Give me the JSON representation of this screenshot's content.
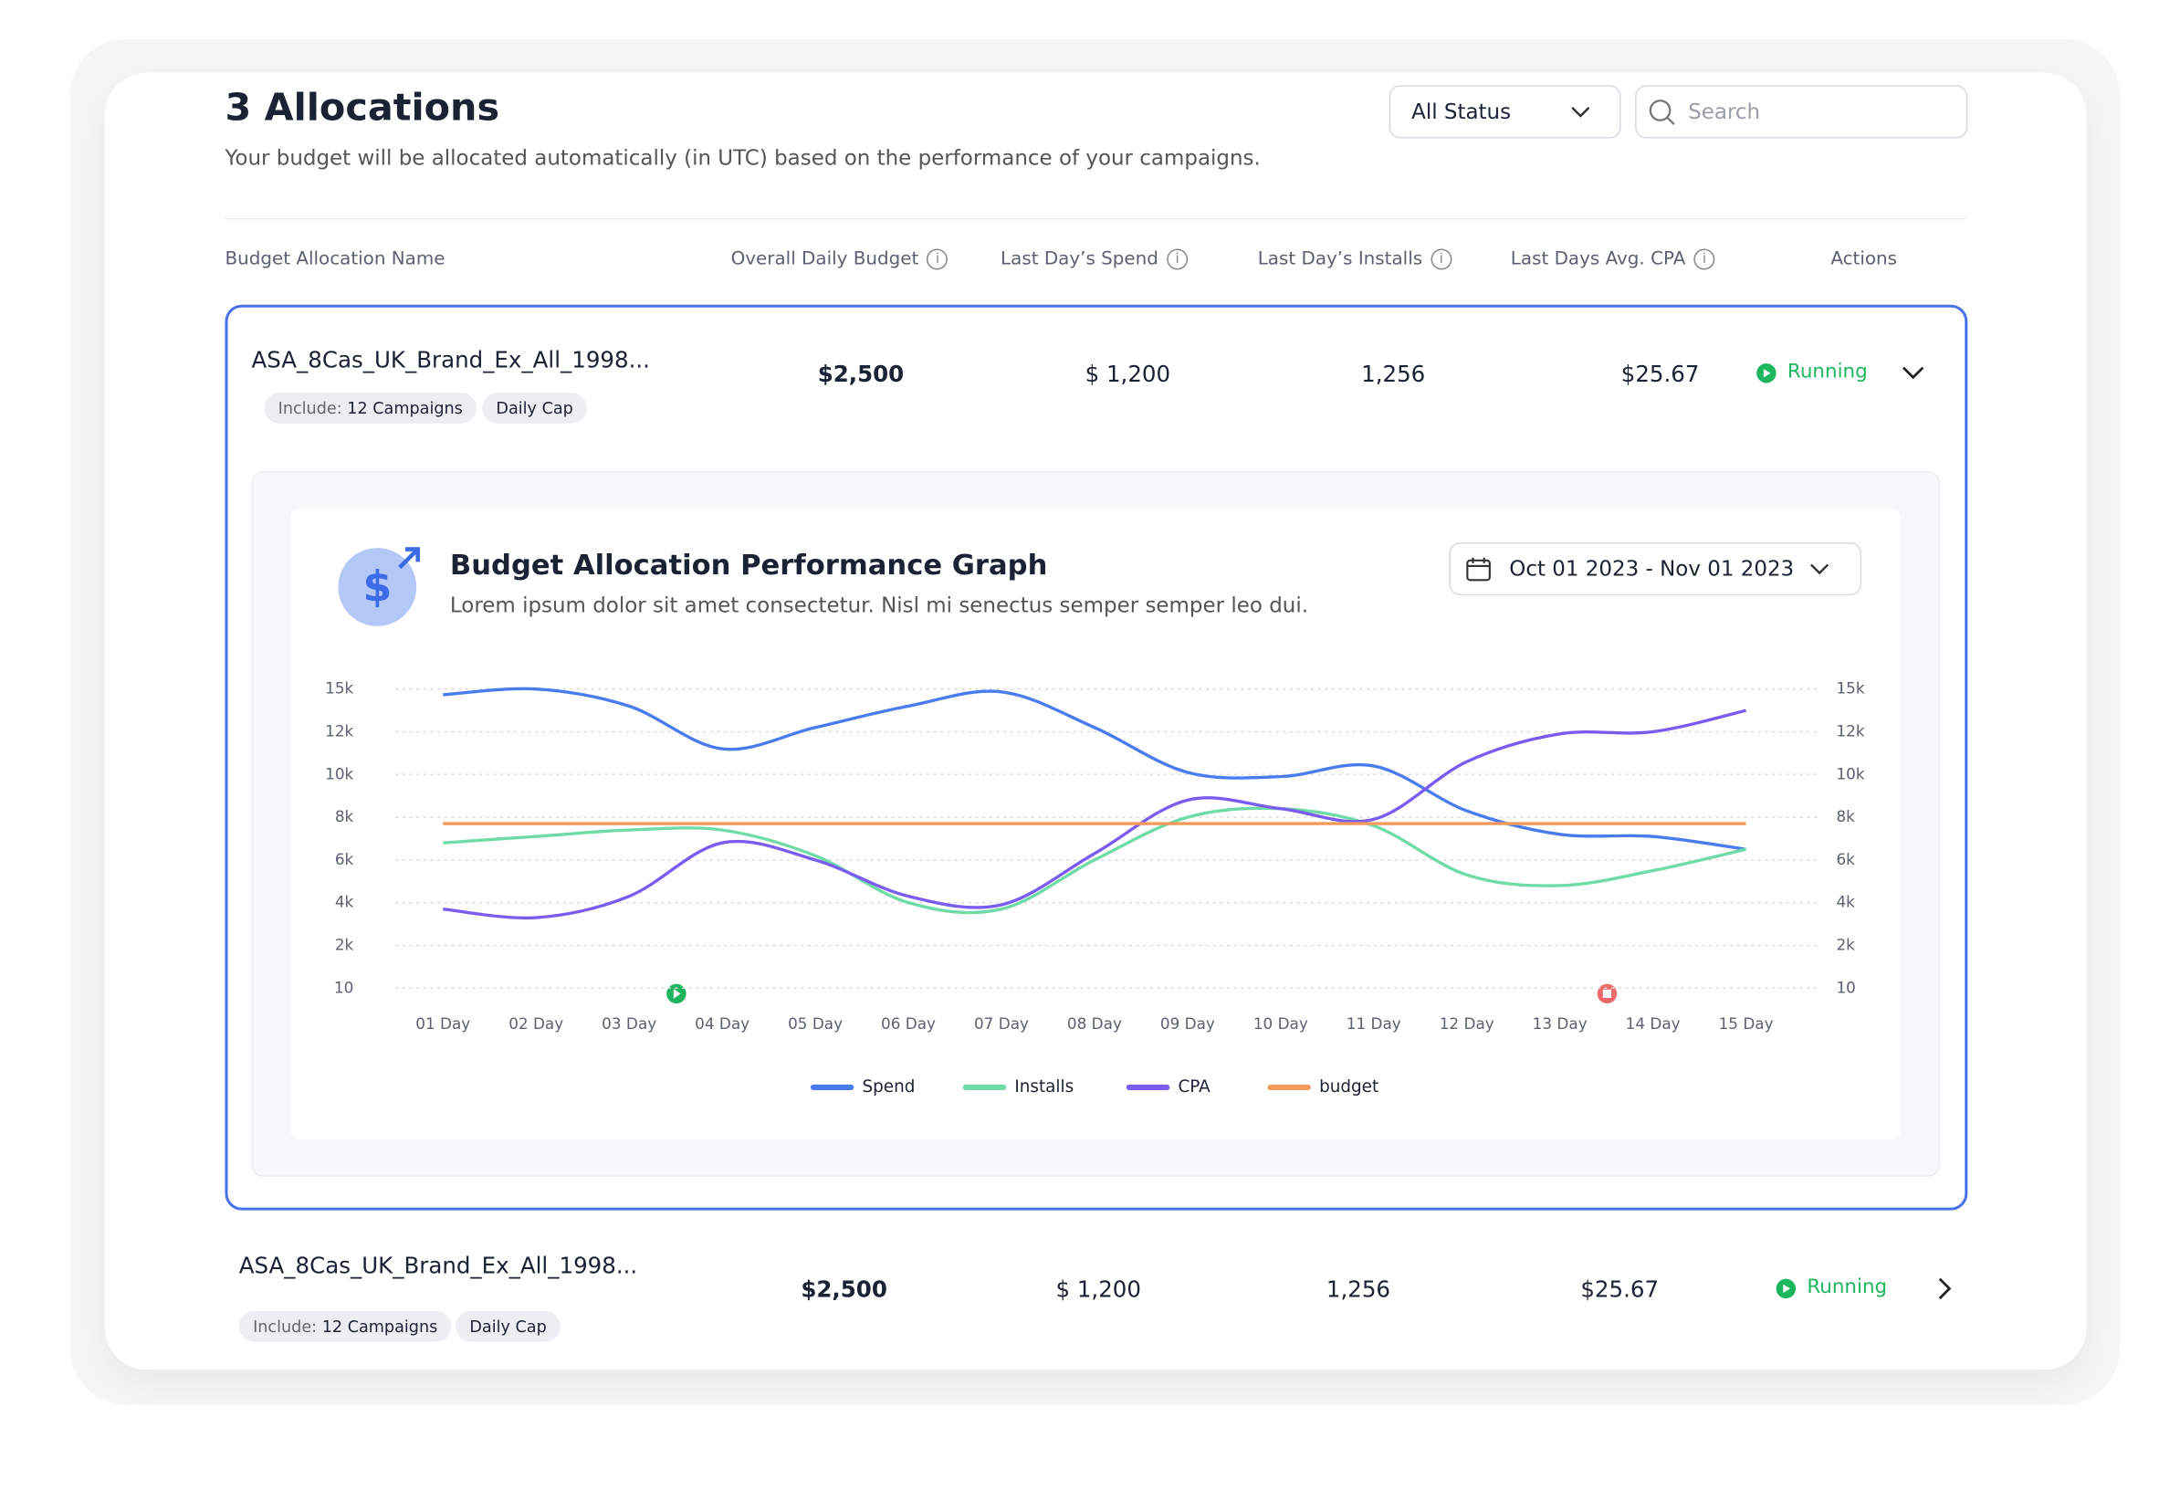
{
  "header": {
    "title": "3 Allocations",
    "subtitle": "Your budget will be allocated automatically (in UTC) based on the performance of your campaigns."
  },
  "filters": {
    "status": "All Status",
    "search": "Search"
  },
  "table": {
    "columns": [
      "Budget Allocation Name",
      "Overall Daily Budget",
      "Last Day’s Spend",
      "Last Day’s Installs",
      "Last Days Avg. CPA",
      "Actions"
    ],
    "rows": [
      {
        "name": "ASA_8Cas_UK_Brand_Ex_All_1998...",
        "include_label": "Include:",
        "include_value": "12 Campaigns",
        "tag": "Daily Cap",
        "budget": "$2,500",
        "spend": "$ 1,200",
        "installs": "1,256",
        "cpa": "$25.67",
        "status": "Running"
      },
      {
        "name": "ASA_8Cas_UK_Brand_Ex_All_1998...",
        "include_label": "Include:",
        "include_value": "12 Campaigns",
        "tag": "Daily Cap",
        "budget": "$2,500",
        "spend": "$ 1,200",
        "installs": "1,256",
        "cpa": "$25.67",
        "status": "Running"
      }
    ]
  },
  "panel": {
    "title": "Budget Allocation Performance Graph",
    "subtitle": "Lorem ipsum dolor sit amet consectetur. Nisl mi senectus semper semper leo dui.",
    "date_range": "Oct 01 2023 - Nov 01 2023"
  },
  "chart_data": {
    "type": "line",
    "categories": [
      "01 Day",
      "02 Day",
      "03 Day",
      "04 Day",
      "05 Day",
      "06 Day",
      "07 Day",
      "08 Day",
      "09 Day",
      "10 Day",
      "11 Day",
      "12 Day",
      "13 Day",
      "14 Day",
      "15 Day"
    ],
    "series": [
      {
        "name": "Spend",
        "color": "#4a7cf0",
        "values": [
          14600,
          15000,
          13800,
          11200,
          12300,
          13800,
          14800,
          12300,
          10100,
          9900,
          10400,
          8300,
          7200,
          7100,
          6500
        ]
      },
      {
        "name": "Installs",
        "color": "#6fdba7",
        "values": [
          6800,
          7100,
          7400,
          7400,
          6200,
          4000,
          3700,
          6000,
          8000,
          8400,
          7600,
          5300,
          4800,
          5500,
          6500
        ]
      },
      {
        "name": "CPA",
        "color": "#7b5cf0",
        "values": [
          3700,
          3300,
          4300,
          6800,
          6000,
          4300,
          3900,
          6300,
          8800,
          8400,
          7900,
          10600,
          11900,
          12000,
          13500
        ]
      },
      {
        "name": "budget",
        "color": "#f29a5b",
        "values": [
          7700,
          7700,
          7700,
          7700,
          7700,
          7700,
          7700,
          7700,
          7700,
          7700,
          7700,
          7700,
          7700,
          7700,
          7700
        ]
      }
    ],
    "ylim": [
      10,
      15000
    ],
    "yticks": [
      10,
      {
        "value": 2000,
        "label": "2k"
      },
      {
        "value": 4000,
        "label": "4k"
      },
      {
        "value": 6000,
        "label": "6k"
      },
      {
        "value": 8000,
        "label": "8k"
      },
      {
        "value": 10000,
        "label": "10k"
      },
      {
        "value": 12000,
        "label": "12k"
      },
      {
        "value": 15000,
        "label": "15k"
      }
    ],
    "grid": true,
    "legend": "bottom"
  }
}
